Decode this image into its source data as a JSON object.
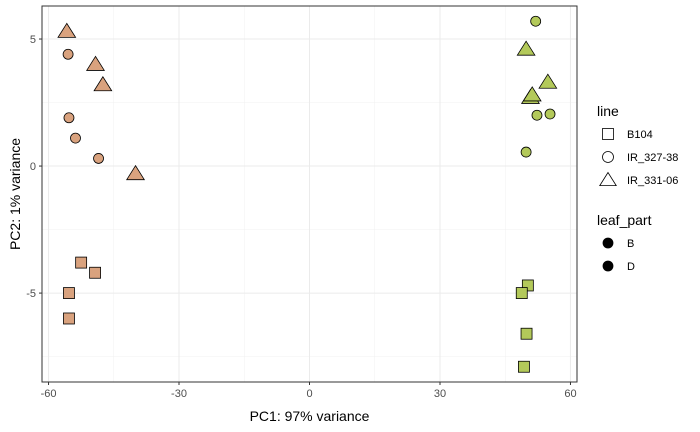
{
  "chart_data": {
    "type": "scatter",
    "xlabel": "PC1: 97% variance",
    "ylabel": "PC2: 1% variance",
    "xlim": [
      -61.5,
      61.5
    ],
    "ylim": [
      -8.5,
      6.3
    ],
    "xticks": [
      -60,
      -30,
      0,
      30,
      60
    ],
    "yticks": [
      -5,
      0,
      5
    ],
    "grid": true,
    "legend_position": "right",
    "colors": {
      "B": "#d9a27e",
      "D": "#b3c95a"
    },
    "legends": [
      {
        "title": "line",
        "entries": [
          {
            "label": "B104",
            "shape": "square"
          },
          {
            "label": "IR_327-38",
            "shape": "circle"
          },
          {
            "label": "IR_331-06",
            "shape": "triangle"
          }
        ]
      },
      {
        "title": "leaf_part",
        "entries": [
          {
            "label": "B",
            "shape": "dot"
          },
          {
            "label": "D",
            "shape": "dot"
          }
        ]
      }
    ],
    "points": [
      {
        "x": -55.8,
        "y": 5.3,
        "line": "IR_331-06",
        "leaf_part": "B"
      },
      {
        "x": -49.2,
        "y": 4.0,
        "line": "IR_331-06",
        "leaf_part": "B"
      },
      {
        "x": -47.5,
        "y": 3.2,
        "line": "IR_331-06",
        "leaf_part": "B"
      },
      {
        "x": -40.0,
        "y": -0.3,
        "line": "IR_331-06",
        "leaf_part": "B"
      },
      {
        "x": -55.5,
        "y": 4.4,
        "line": "IR_327-38",
        "leaf_part": "B"
      },
      {
        "x": -55.3,
        "y": 1.9,
        "line": "IR_327-38",
        "leaf_part": "B"
      },
      {
        "x": -53.8,
        "y": 1.1,
        "line": "IR_327-38",
        "leaf_part": "B"
      },
      {
        "x": -48.5,
        "y": 0.3,
        "line": "IR_327-38",
        "leaf_part": "B"
      },
      {
        "x": -52.5,
        "y": -3.8,
        "line": "B104",
        "leaf_part": "B"
      },
      {
        "x": -49.3,
        "y": -4.2,
        "line": "B104",
        "leaf_part": "B"
      },
      {
        "x": -55.3,
        "y": -5.0,
        "line": "B104",
        "leaf_part": "B"
      },
      {
        "x": -55.3,
        "y": -6.0,
        "line": "B104",
        "leaf_part": "B"
      },
      {
        "x": 49.8,
        "y": 4.6,
        "line": "IR_331-06",
        "leaf_part": "D"
      },
      {
        "x": 54.8,
        "y": 3.3,
        "line": "IR_331-06",
        "leaf_part": "D"
      },
      {
        "x": 50.8,
        "y": 2.7,
        "line": "IR_331-06",
        "leaf_part": "D"
      },
      {
        "x": 51.2,
        "y": 2.8,
        "line": "IR_331-06",
        "leaf_part": "D"
      },
      {
        "x": 52.0,
        "y": 5.7,
        "line": "IR_327-38",
        "leaf_part": "D"
      },
      {
        "x": 52.3,
        "y": 2.0,
        "line": "IR_327-38",
        "leaf_part": "D"
      },
      {
        "x": 55.3,
        "y": 2.05,
        "line": "IR_327-38",
        "leaf_part": "D"
      },
      {
        "x": 49.8,
        "y": 0.55,
        "line": "IR_327-38",
        "leaf_part": "D"
      },
      {
        "x": 50.2,
        "y": -4.7,
        "line": "B104",
        "leaf_part": "D"
      },
      {
        "x": 48.8,
        "y": -5.0,
        "line": "B104",
        "leaf_part": "D"
      },
      {
        "x": 49.9,
        "y": -6.6,
        "line": "B104",
        "leaf_part": "D"
      },
      {
        "x": 49.3,
        "y": -7.9,
        "line": "B104",
        "leaf_part": "D"
      }
    ]
  }
}
